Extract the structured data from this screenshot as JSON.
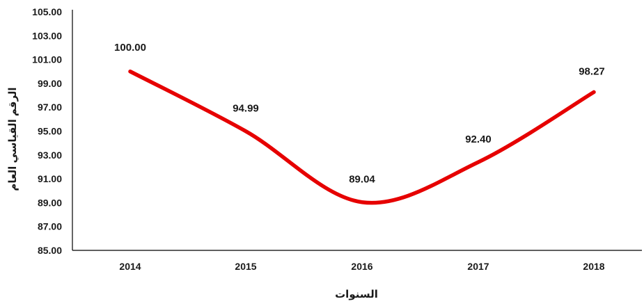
{
  "chart_data": {
    "type": "line",
    "title": "",
    "xlabel": "السنوات",
    "ylabel": "الرقم القياسي العام",
    "categories": [
      "2014",
      "2015",
      "2016",
      "2017",
      "2018"
    ],
    "series": [
      {
        "values": [
          100.0,
          94.99,
          89.04,
          92.4,
          98.27
        ]
      }
    ],
    "data_labels": [
      "100.00",
      "94.99",
      "89.04",
      "92.40",
      "98.27"
    ],
    "ylim": [
      85.0,
      105.0
    ],
    "yticks": [
      "85.00",
      "87.00",
      "89.00",
      "91.00",
      "93.00",
      "95.00",
      "97.00",
      "99.00",
      "101.00",
      "103.00",
      "105.00"
    ],
    "grid": false,
    "legend": "none",
    "smooth": true,
    "colors": {
      "line": "#e60000",
      "axis": "#000000",
      "text": "#1a1a1a"
    }
  }
}
